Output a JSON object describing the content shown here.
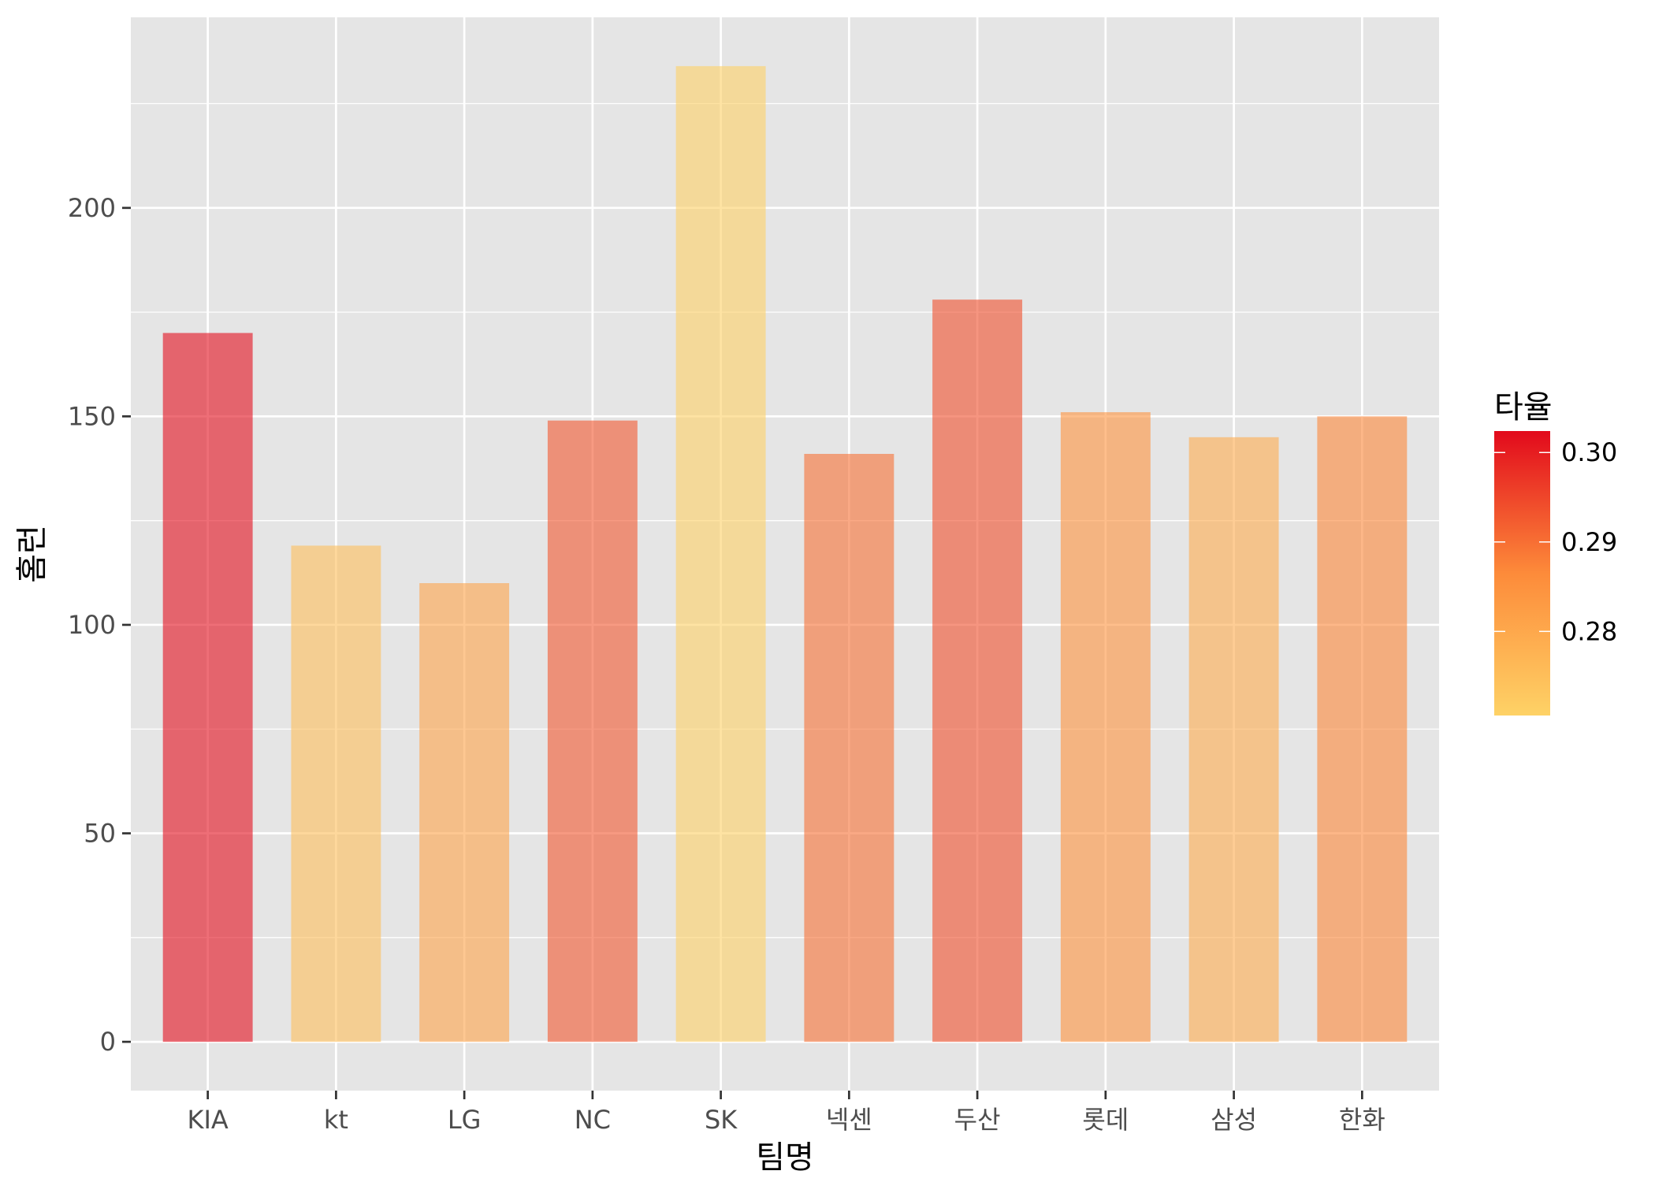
{
  "chart_data": {
    "type": "bar",
    "xlabel": "팀명",
    "ylabel": "홈런",
    "categories": [
      "KIA",
      "kt",
      "LG",
      "NC",
      "SK",
      "넥센",
      "두산",
      "롯데",
      "삼성",
      "한화"
    ],
    "values": [
      170,
      119,
      110,
      149,
      234,
      141,
      178,
      151,
      145,
      150
    ],
    "fill_values": [
      0.302,
      0.275,
      0.281,
      0.293,
      0.271,
      0.29,
      0.294,
      0.285,
      0.279,
      0.287
    ],
    "ylim": [
      -11.7,
      245.7
    ],
    "yticks": [
      0,
      50,
      100,
      150,
      200
    ],
    "ytick_labels": [
      "0",
      "50",
      "100",
      "150",
      "200"
    ],
    "grid": true,
    "bar_opacity": 0.6,
    "legend": {
      "title": "타율",
      "position": "right",
      "range": [
        0.2706,
        0.3024
      ],
      "ticks": [
        0.28,
        0.29,
        0.3
      ],
      "tick_labels": [
        "0.28",
        "0.29",
        "0.30"
      ]
    },
    "colors": {
      "panel_background": "#e5e5e5",
      "grid": "#ffffff",
      "gradient_low": "#fed266",
      "gradient_mid": "#fd8b3a",
      "gradient_high": "#e20a1c"
    }
  }
}
